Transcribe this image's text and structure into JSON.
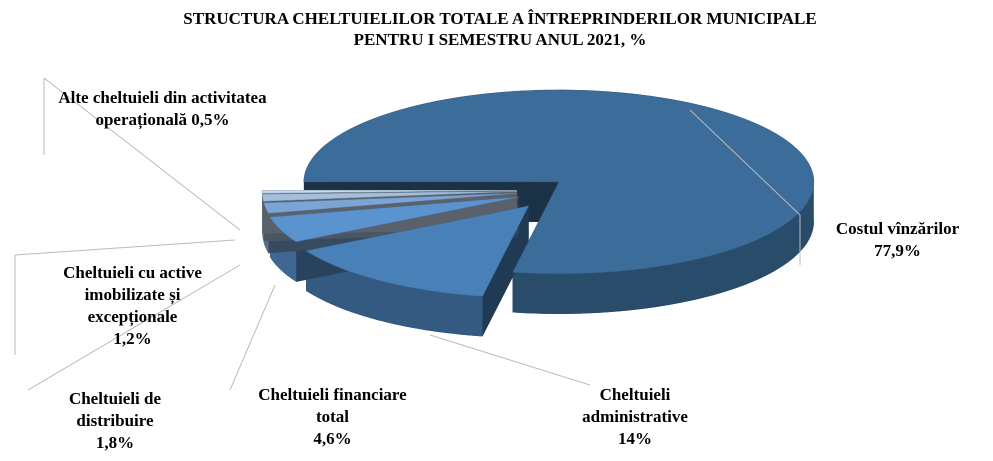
{
  "chart_data": {
    "type": "pie3d",
    "title": "STRUCTURA CHELTUIELILOR TOTALE A ÎNTREPRINDERILOR MUNICIPALE PENTRU I SEMESTRU ANUL 2021, %",
    "categories": [
      "Costul vînzărilor",
      "Cheltuieli administrative",
      "Cheltuieli financiare total",
      "Cheltuieli de distribuire",
      "Cheltuieli cu active imobilizate și excepționale",
      "Alte cheltuieli din activitatea operațională"
    ],
    "values": [
      77.9,
      14,
      4.6,
      1.8,
      1.2,
      0.5
    ],
    "value_labels": [
      "77,9%",
      "14%",
      "4,6%",
      "1,8%",
      "1,2%",
      "0,5%"
    ],
    "colors": [
      "#3c6c99",
      "#4a80b8",
      "#5b93cf",
      "#7aa5d4",
      "#a3bfdf",
      "#c9d8ec"
    ]
  }
}
